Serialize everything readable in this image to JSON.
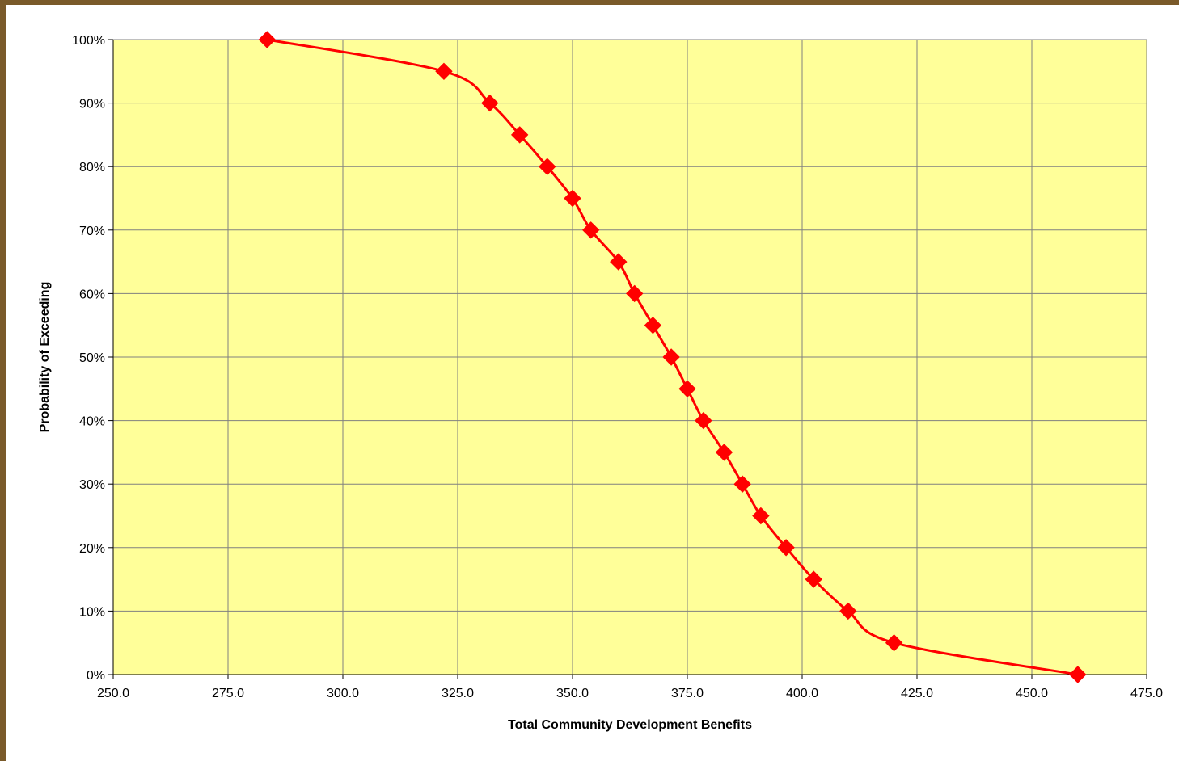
{
  "colors": {
    "plot_background": "#ffff99",
    "grid": "#808080",
    "series_line": "#ff0000",
    "marker": "#ff0000",
    "frame_border": "#7a5a2a"
  },
  "chart_data": {
    "type": "line",
    "title": "",
    "xlabel": "Total Community Development Benefits",
    "ylabel": "Probability of Exceeding",
    "xlim": [
      250,
      475
    ],
    "ylim": [
      0,
      100
    ],
    "xticks": [
      "250.0",
      "275.0",
      "300.0",
      "325.0",
      "350.0",
      "375.0",
      "400.0",
      "425.0",
      "450.0",
      "475.0"
    ],
    "yticks": [
      "0%",
      "10%",
      "20%",
      "30%",
      "40%",
      "50%",
      "60%",
      "70%",
      "80%",
      "90%",
      "100%"
    ],
    "grid": true,
    "smooth": true,
    "marker": "diamond",
    "series": [
      {
        "x": [
          283.5,
          322.0,
          332.0,
          338.5,
          344.5,
          350.0,
          354.0,
          360.0,
          363.5,
          367.5,
          371.5,
          375.0,
          378.5,
          383.0,
          387.0,
          391.0,
          396.5,
          402.5,
          410.0,
          420.0,
          460.0
        ],
        "y": [
          100,
          95,
          90,
          85,
          80,
          75,
          70,
          65,
          60,
          55,
          50,
          45,
          40,
          35,
          30,
          25,
          20,
          15,
          10,
          5,
          0
        ]
      }
    ]
  }
}
